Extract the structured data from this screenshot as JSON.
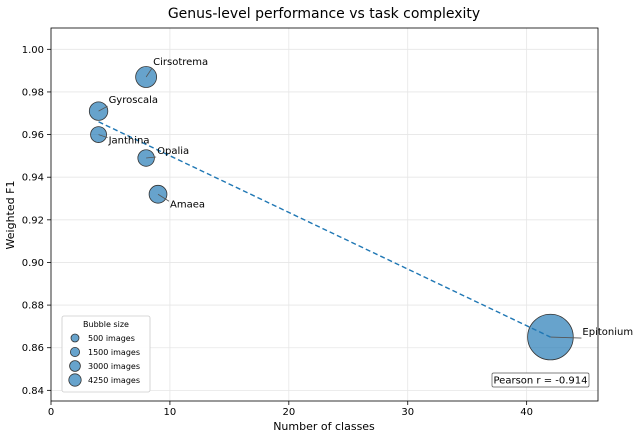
{
  "chart_data": {
    "type": "scatter",
    "title": "Genus-level performance vs task complexity",
    "xlabel": "Number of classes",
    "ylabel": "Weighted F1",
    "xlim": [
      0,
      46
    ],
    "ylim": [
      0.835,
      1.01
    ],
    "xticks": [
      0,
      10,
      20,
      30,
      40
    ],
    "yticks": [
      0.84,
      0.86,
      0.88,
      0.9,
      0.92,
      0.94,
      0.96,
      0.98,
      1.0
    ],
    "ytick_labels": [
      "0.84",
      "0.86",
      "0.88",
      "0.90",
      "0.92",
      "0.94",
      "0.96",
      "0.98",
      "1.00"
    ],
    "grid": true,
    "point_color": "#1f77b4",
    "trend_color": "#1f77b4",
    "points": [
      {
        "label": "Cirsotrema",
        "x": 8,
        "y": 0.987,
        "images": 900
      },
      {
        "label": "Gyroscala",
        "x": 4,
        "y": 0.971,
        "images": 700
      },
      {
        "label": "Janthina",
        "x": 4,
        "y": 0.96,
        "images": 520
      },
      {
        "label": "Opalia",
        "x": 8,
        "y": 0.949,
        "images": 560
      },
      {
        "label": "Amaea",
        "x": 9,
        "y": 0.932,
        "images": 650
      },
      {
        "label": "Epitonium",
        "x": 42,
        "y": 0.865,
        "images": 4250
      }
    ],
    "trend_line": {
      "x": [
        4,
        42
      ],
      "y": [
        0.966,
        0.865
      ],
      "style": "dashed"
    },
    "legend": {
      "title": "Bubble size",
      "placement": "lower-left",
      "entries": [
        {
          "images": 500,
          "label": "500 images"
        },
        {
          "images": 1500,
          "label": "1500 images"
        },
        {
          "images": 3000,
          "label": "3000 images"
        },
        {
          "images": 4250,
          "label": "4250 images"
        }
      ]
    },
    "annotation": {
      "text": "Pearson r = -0.914",
      "placement": "lower-right"
    }
  }
}
